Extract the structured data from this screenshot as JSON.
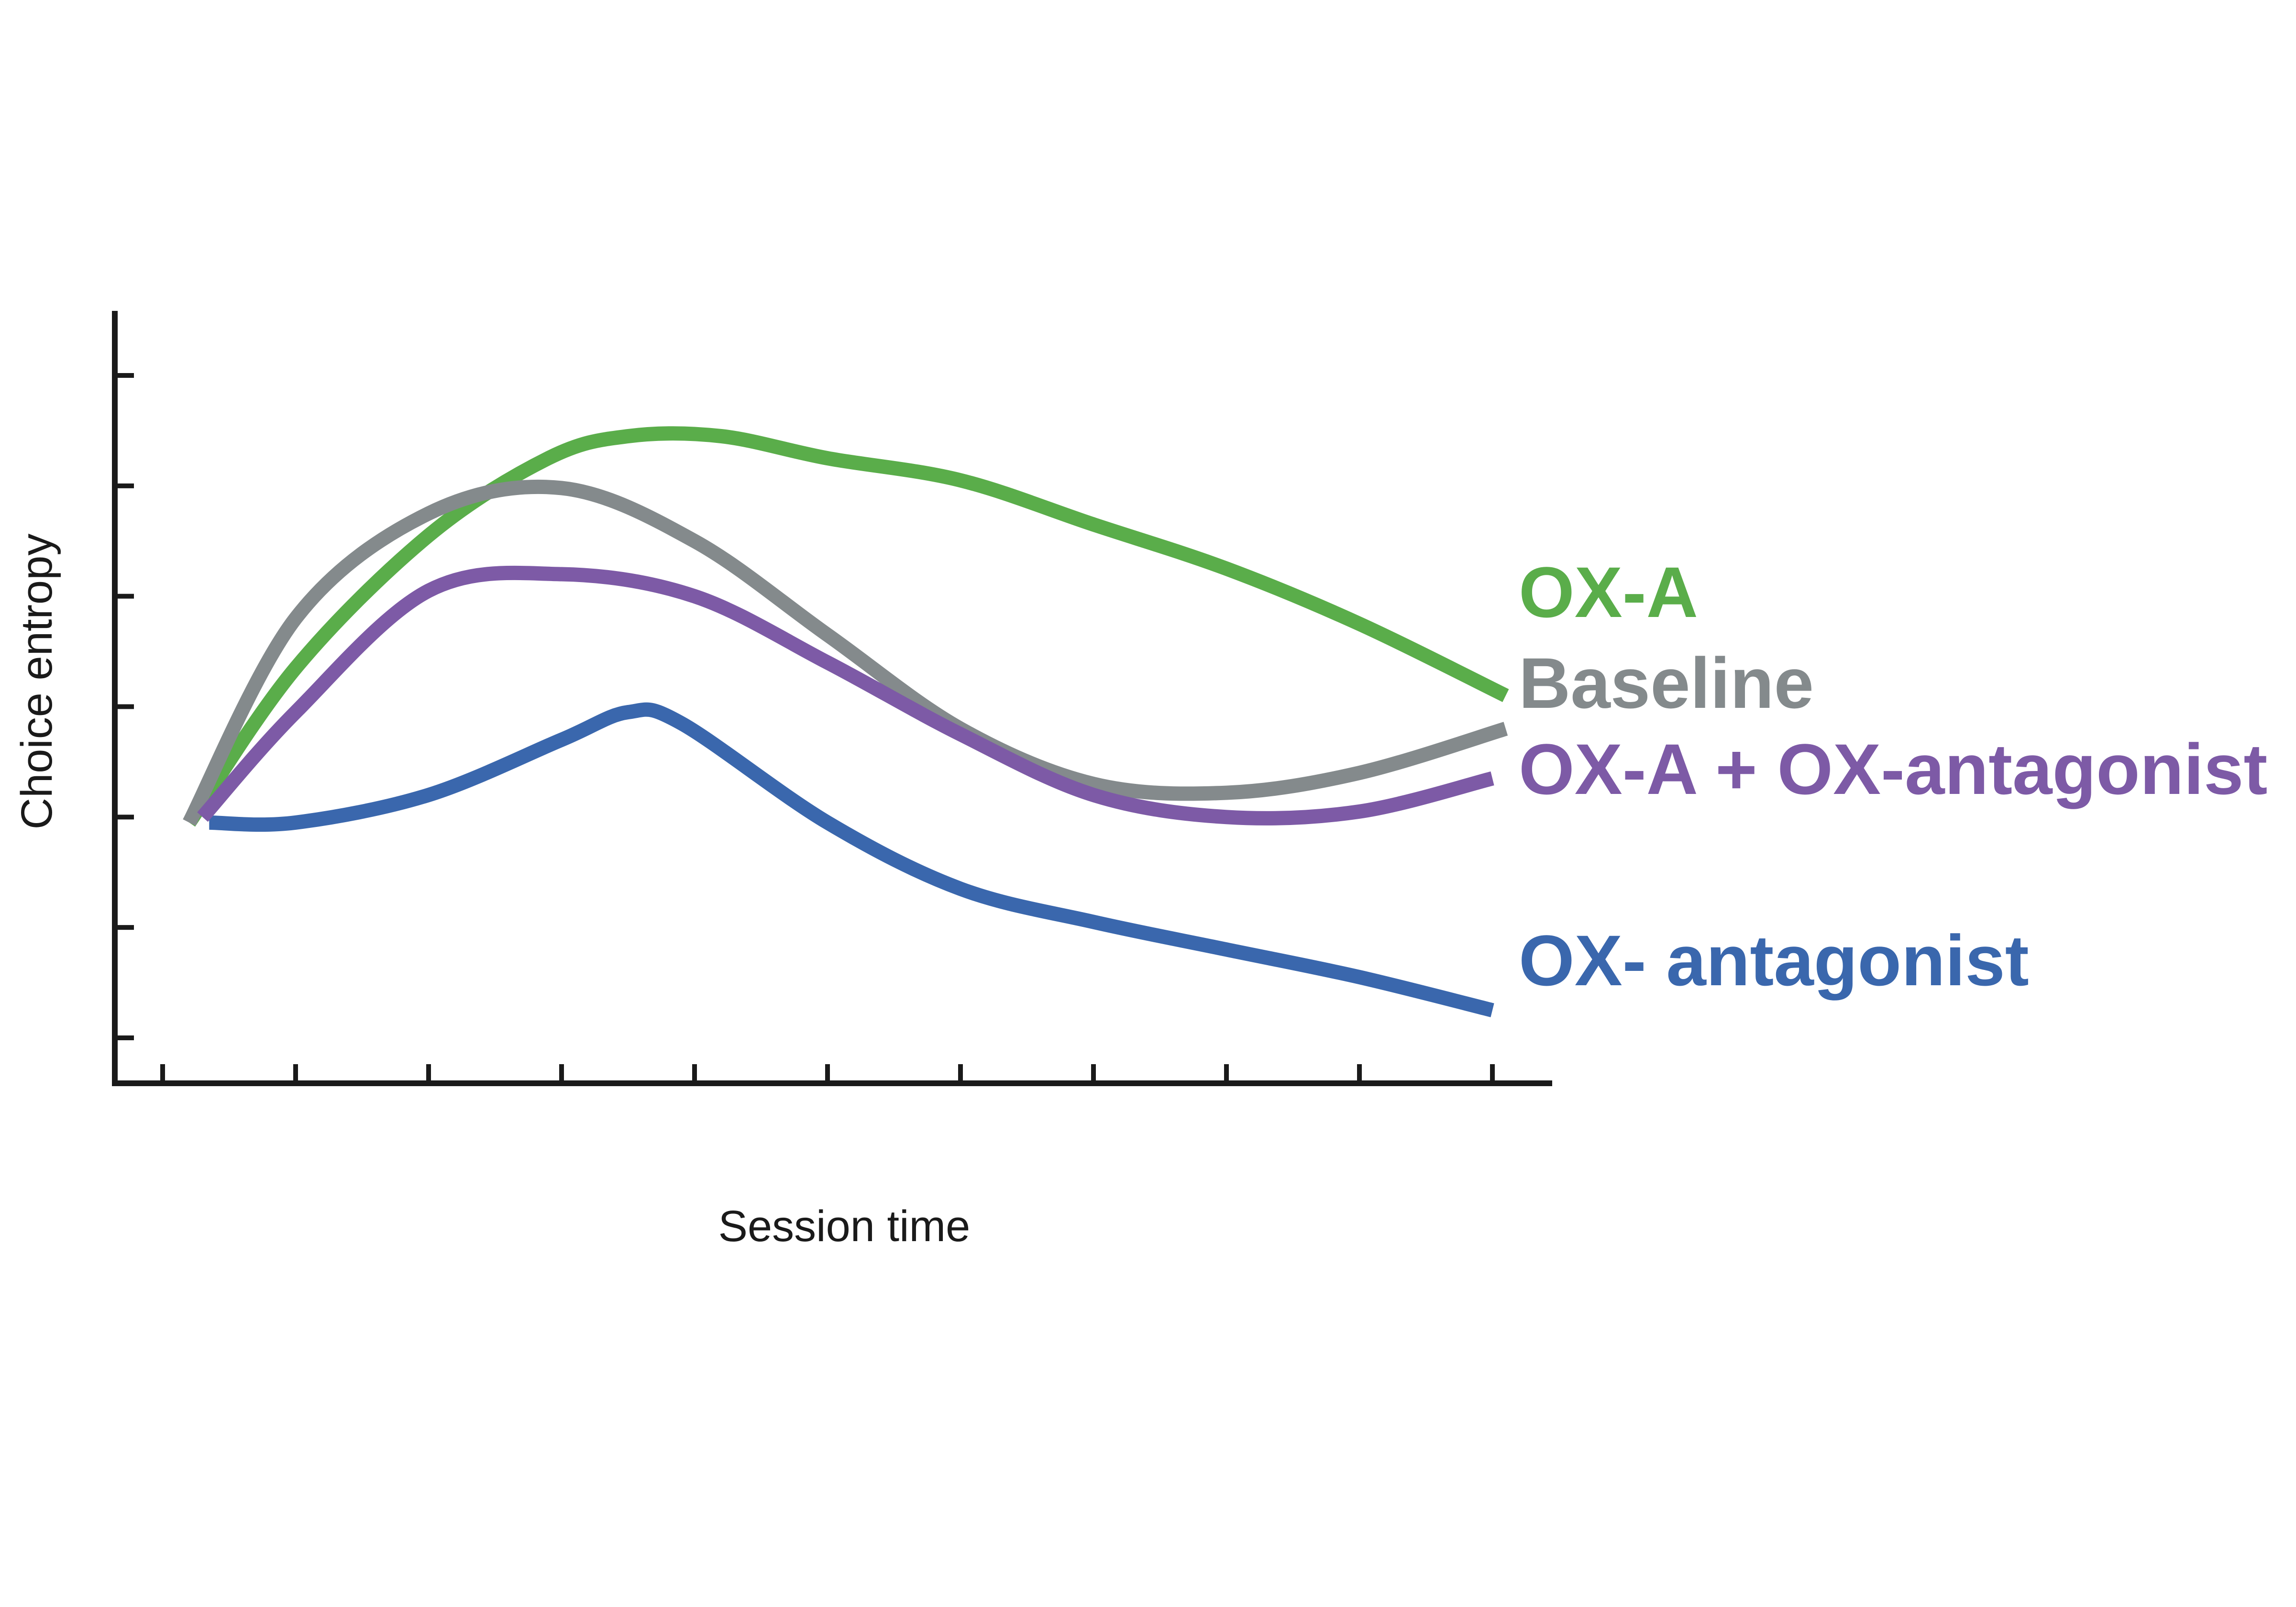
{
  "chart_data": {
    "type": "line",
    "title": "",
    "xlabel": "Session time",
    "ylabel": "Choice entropy",
    "xlim": [
      0,
      10
    ],
    "ylim": [
      0,
      6
    ],
    "x_ticks": [
      0,
      1,
      2,
      3,
      4,
      5,
      6,
      7,
      8,
      9,
      10
    ],
    "y_ticks": [
      0,
      1,
      2,
      3,
      4,
      5,
      6
    ],
    "grid": false,
    "legend": "inline labels at right end of lines",
    "series": [
      {
        "name": "OX-A",
        "color": "#5aad4a",
        "x": [
          0.2,
          1.0,
          2.0,
          2.9,
          3.5,
          4.2,
          5.0,
          6.0,
          7.0,
          8.0,
          9.0,
          10.1
        ],
        "y": [
          1.95,
          3.35,
          4.55,
          5.25,
          5.45,
          5.45,
          5.25,
          5.05,
          4.65,
          4.25,
          3.75,
          3.1
        ]
      },
      {
        "name": "Baseline",
        "color": "#848a8c",
        "x": [
          0.2,
          1.0,
          2.0,
          3.0,
          4.0,
          5.0,
          6.0,
          7.0,
          8.0,
          9.0,
          10.1
        ],
        "y": [
          1.95,
          3.8,
          4.75,
          4.98,
          4.5,
          3.65,
          2.8,
          2.3,
          2.22,
          2.4,
          2.8
        ]
      },
      {
        "name": "OX-A + OX-antagonist",
        "color": "#7d5aa6",
        "x": [
          0.3,
          1.0,
          2.0,
          3.0,
          4.0,
          5.0,
          6.0,
          7.0,
          8.0,
          9.0,
          10.0
        ],
        "y": [
          2.0,
          2.95,
          4.05,
          4.2,
          4.0,
          3.4,
          2.75,
          2.2,
          2.0,
          2.05,
          2.35
        ]
      },
      {
        "name": "OX- antagonist",
        "color": "#3a67ad",
        "x": [
          0.35,
          1.0,
          2.0,
          3.0,
          3.5,
          3.9,
          5.0,
          6.0,
          7.0,
          8.0,
          9.0,
          10.0
        ],
        "y": [
          1.95,
          1.95,
          2.2,
          2.7,
          2.95,
          2.85,
          1.95,
          1.35,
          1.05,
          0.8,
          0.55,
          0.25
        ]
      }
    ]
  }
}
